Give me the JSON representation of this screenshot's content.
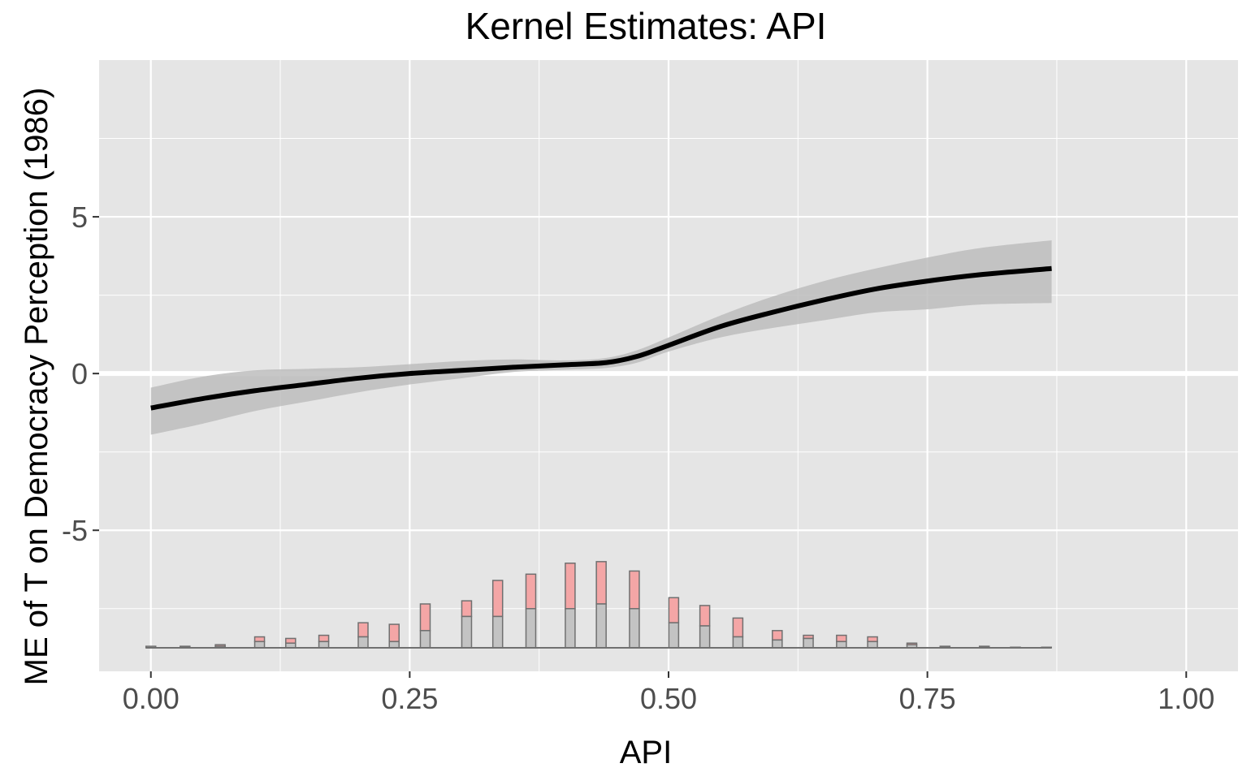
{
  "chart_data": {
    "type": "line",
    "title": "Kernel Estimates: API",
    "xlabel": "API",
    "ylabel": "ME of T on Democracy Perception (1986)",
    "xlim": [
      -0.05,
      1.05
    ],
    "ylim": [
      -9.5,
      10
    ],
    "x_ticks": [
      "0.00",
      "0.25",
      "0.50",
      "0.75",
      "1.00"
    ],
    "x_tick_values": [
      0,
      0.25,
      0.5,
      0.75,
      1.0
    ],
    "y_ticks": [
      "5",
      "0",
      "-5"
    ],
    "y_tick_values": [
      5,
      0,
      -5
    ],
    "grid": true,
    "zero_line": true,
    "series": [
      {
        "x": [
          0.0,
          0.05,
          0.1,
          0.15,
          0.2,
          0.25,
          0.3,
          0.35,
          0.4,
          0.44,
          0.47,
          0.5,
          0.55,
          0.6,
          0.65,
          0.7,
          0.75,
          0.8,
          0.87
        ],
        "y": [
          -1.1,
          -0.8,
          -0.55,
          -0.35,
          -0.15,
          0.0,
          0.1,
          0.2,
          0.28,
          0.35,
          0.55,
          0.9,
          1.5,
          1.95,
          2.35,
          2.7,
          2.95,
          3.15,
          3.35
        ],
        "lower": [
          -1.95,
          -1.6,
          -1.2,
          -0.9,
          -0.6,
          -0.35,
          -0.15,
          0.05,
          0.12,
          0.18,
          0.35,
          0.7,
          1.15,
          1.45,
          1.7,
          1.95,
          2.05,
          2.2,
          2.25
        ],
        "upper": [
          -0.45,
          -0.1,
          0.1,
          0.15,
          0.2,
          0.3,
          0.4,
          0.45,
          0.42,
          0.5,
          0.75,
          1.15,
          1.85,
          2.45,
          2.95,
          3.35,
          3.7,
          4.0,
          4.25
        ],
        "color": "#000000",
        "band_color": "#bdbdbd"
      }
    ],
    "histogram": {
      "baseline": -8.75,
      "bins": [
        0.0,
        0.033,
        0.067,
        0.105,
        0.135,
        0.167,
        0.205,
        0.235,
        0.265,
        0.305,
        0.335,
        0.367,
        0.405,
        0.435,
        0.467,
        0.505,
        0.535,
        0.567,
        0.605,
        0.635,
        0.667,
        0.697,
        0.735,
        0.767,
        0.805,
        0.835,
        0.865
      ],
      "treated": [
        -8.7,
        -8.7,
        -8.65,
        -8.4,
        -8.45,
        -8.35,
        -7.95,
        -8.0,
        -7.35,
        -7.25,
        -6.6,
        -6.4,
        -6.05,
        -6.0,
        -6.3,
        -7.15,
        -7.4,
        -7.8,
        -8.2,
        -8.35,
        -8.35,
        -8.4,
        -8.6,
        -8.7,
        -8.7,
        -8.73,
        -8.73
      ],
      "control": [
        -8.7,
        -8.72,
        -8.7,
        -8.55,
        -8.6,
        -8.55,
        -8.4,
        -8.55,
        -8.2,
        -7.75,
        -7.75,
        -7.5,
        -7.5,
        -7.35,
        -7.5,
        -7.95,
        -8.05,
        -8.4,
        -8.5,
        -8.45,
        -8.55,
        -8.55,
        -8.65,
        -8.72,
        -8.72,
        -8.74,
        -8.74
      ],
      "treated_color": "#f4a6a6",
      "control_color": "#c3c3c3",
      "edge_color": "#707070"
    },
    "panel_color": "#e5e5e5",
    "grid_color": "#ffffff"
  }
}
